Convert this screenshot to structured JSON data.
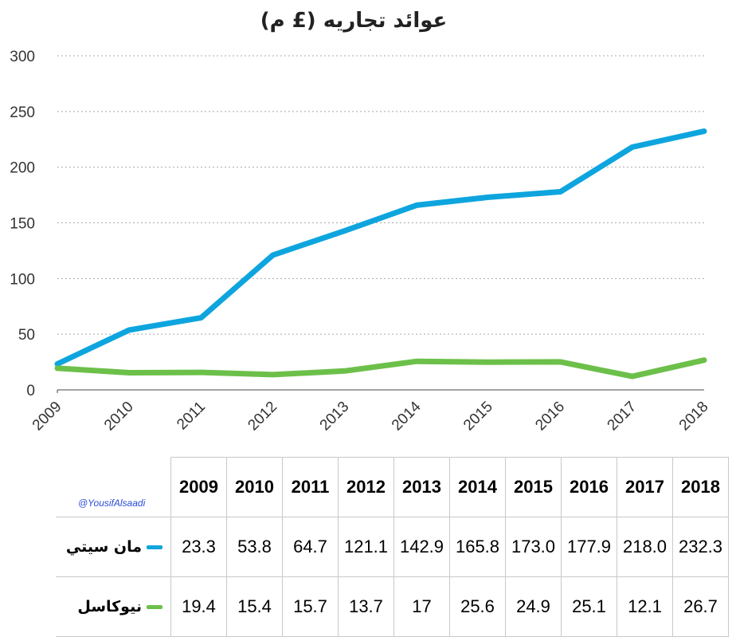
{
  "chart_data": {
    "type": "line",
    "title": "عوائد تجاريه  (£ م)",
    "categories": [
      "2009",
      "2010",
      "2011",
      "2012",
      "2013",
      "2014",
      "2015",
      "2016",
      "2017",
      "2018"
    ],
    "yticks": [
      "0",
      "50",
      "100",
      "150",
      "200",
      "250",
      "300"
    ],
    "ylim": [
      0,
      300
    ],
    "grid": true,
    "series": [
      {
        "name": "مان سيتي",
        "color": "#0ea5de",
        "values": [
          23.3,
          53.8,
          64.7,
          121.1,
          142.9,
          165.8,
          173.0,
          177.9,
          218.0,
          232.3
        ],
        "labels": [
          "23.3",
          "53.8",
          "64.7",
          "121.1",
          "142.9",
          "165.8",
          "173.0",
          "177.9",
          "218.0",
          "232.3"
        ]
      },
      {
        "name": "نيوكاسل",
        "color": "#6cc04a",
        "values": [
          19.4,
          15.4,
          15.7,
          13.7,
          17,
          25.6,
          24.9,
          25.1,
          12.1,
          26.7
        ],
        "labels": [
          "19.4",
          "15.4",
          "15.7",
          "13.7",
          "17",
          "25.6",
          "24.9",
          "25.1",
          "12.1",
          "26.7"
        ]
      }
    ]
  },
  "credit": "@YousifAlsaadi"
}
